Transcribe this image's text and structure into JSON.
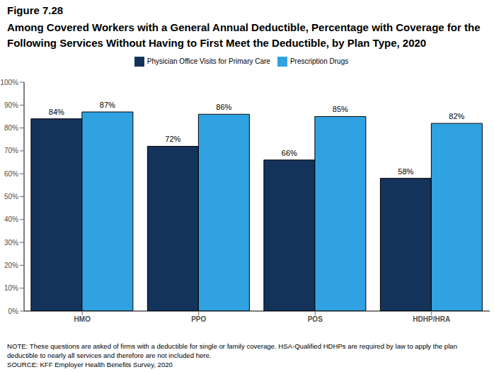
{
  "chart_data": {
    "type": "bar",
    "title": "Figure 7.28",
    "subtitle": "Among Covered Workers with a General Annual Deductible, Percentage with Coverage for the Following Services Without Having to First Meet the Deductible, by Plan Type, 2020",
    "categories": [
      "HMO",
      "PPO",
      "POS",
      "HDHP/HRA"
    ],
    "series": [
      {
        "name": "Physician Office Visits for Primary Care",
        "color": "#14335a",
        "values": [
          84,
          72,
          66,
          58
        ],
        "value_labels": [
          "84%",
          "72%",
          "66%",
          "58%"
        ]
      },
      {
        "name": "Prescription Drugs",
        "color": "#30a2e2",
        "values": [
          87,
          86,
          85,
          82
        ],
        "value_labels": [
          "87%",
          "86%",
          "85%",
          "82%"
        ]
      }
    ],
    "ylim": [
      0,
      100
    ],
    "yticks": [
      {
        "value": 0,
        "label": "0%"
      },
      {
        "value": 10,
        "label": "10%"
      },
      {
        "value": 20,
        "label": "20%"
      },
      {
        "value": 30,
        "label": "30%"
      },
      {
        "value": 40,
        "label": "40%"
      },
      {
        "value": 50,
        "label": "50%"
      },
      {
        "value": 60,
        "label": "60%"
      },
      {
        "value": 70,
        "label": "70%"
      },
      {
        "value": 80,
        "label": "80%"
      },
      {
        "value": 90,
        "label": "90%"
      },
      {
        "value": 100,
        "label": "100%"
      }
    ],
    "grid": false,
    "legend": "top",
    "data_labels": true,
    "notes": [
      "NOTE: These questions are asked of firms with a deductible for single or family coverage. HSA-Qualified HDHPs are required by law to apply the plan deductible to nearly all services and therefore are not included here.",
      "SOURCE: KFF Employer Health Benefits Survey, 2020"
    ]
  }
}
